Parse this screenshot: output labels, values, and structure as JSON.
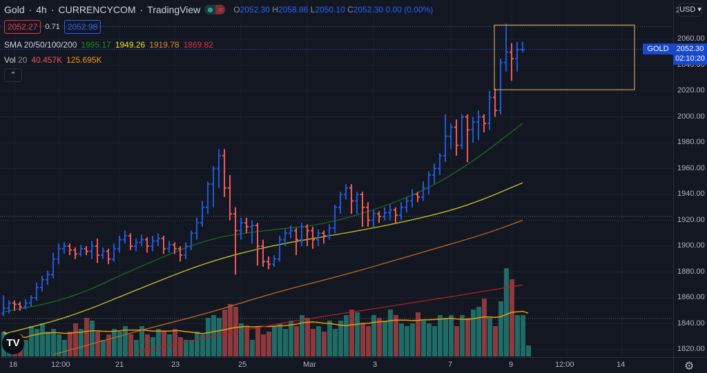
{
  "header": {
    "symbol": "Gold",
    "interval": "4h",
    "source": "CURRENCYCOM",
    "provider": "TradingView",
    "sep": "·",
    "ohlc": {
      "o_label": "O",
      "o": "2052.30",
      "h_label": "H",
      "h": "2058.86",
      "l_label": "L",
      "l": "2050.10",
      "c_label": "C",
      "c": "2052.30",
      "change": "0.00 (0.00%)"
    },
    "bid": "2052.27",
    "spread": "0.71",
    "ask": "2052.98",
    "sma_label": "SMA 20/50/100/200",
    "sma_values": [
      "1995.17",
      "1949.26",
      "1919.78",
      "1869.82"
    ],
    "vol_label": "Vol",
    "vol_period": "20",
    "vol_values": [
      "40.457K",
      "125.695K"
    ],
    "collapse_icon": "chevron-up-icon",
    "collapse_glyph": "⌃"
  },
  "price_axis": {
    "currency": "USD ▾",
    "top_partial": "2",
    "labels": [
      "2060.00",
      "2040.00",
      "2020.00",
      "2000.00",
      "1980.00",
      "1960.00",
      "1940.00",
      "1920.00",
      "1900.00",
      "1880.00",
      "1860.00",
      "1840.00",
      "1820.00"
    ],
    "symbol_tag": "GOLD",
    "last_price": "2052.30",
    "countdown": "02:10:20"
  },
  "time_axis": {
    "ticks": [
      {
        "label": "16",
        "bar": 2
      },
      {
        "label": "12:00",
        "bar": 10
      },
      {
        "label": "21",
        "bar": 21
      },
      {
        "label": "23",
        "bar": 31
      },
      {
        "label": "25",
        "bar": 43
      },
      {
        "label": "Mar",
        "bar": 55
      },
      {
        "label": "3",
        "bar": 67
      },
      {
        "label": "7",
        "bar": 81
      },
      {
        "label": "9",
        "bar": 92
      },
      {
        "label": "12:00",
        "bar": 102
      },
      {
        "label": "14",
        "bar": 112
      }
    ]
  },
  "logo": "TV",
  "settings_icon": "gear-icon",
  "colors": {
    "up": "#2158d6",
    "down": "#f05a5a",
    "vol_up": "#1f6b66",
    "vol_down": "#8c3a3e",
    "sma20": "#1b6b1f",
    "sma50": "#c8c428",
    "sma100": "#c26a1e",
    "sma200": "#b0202a",
    "vol_ma": "#f59b00",
    "rect": "#c9a15a",
    "bg": "#131722"
  },
  "chart_data": {
    "type": "ohlc",
    "ylim": [
      1812,
      2084
    ],
    "ohlc": [
      [
        1848,
        1862,
        1846,
        1852
      ],
      [
        1852,
        1858,
        1848,
        1856
      ],
      [
        1856,
        1858,
        1850,
        1855
      ],
      [
        1855,
        1857,
        1850,
        1853
      ],
      [
        1853,
        1859,
        1851,
        1856
      ],
      [
        1856,
        1862,
        1853,
        1860
      ],
      [
        1860,
        1872,
        1858,
        1868
      ],
      [
        1868,
        1877,
        1865,
        1874
      ],
      [
        1874,
        1881,
        1870,
        1878
      ],
      [
        1878,
        1895,
        1875,
        1890
      ],
      [
        1890,
        1902,
        1886,
        1898
      ],
      [
        1898,
        1903,
        1894,
        1900
      ],
      [
        1900,
        1902,
        1893,
        1897
      ],
      [
        1897,
        1899,
        1890,
        1894
      ],
      [
        1894,
        1901,
        1892,
        1898
      ],
      [
        1898,
        1900,
        1893,
        1896
      ],
      [
        1896,
        1904,
        1890,
        1900
      ],
      [
        1900,
        1906,
        1887,
        1893
      ],
      [
        1893,
        1899,
        1890,
        1896
      ],
      [
        1896,
        1898,
        1886,
        1890
      ],
      [
        1890,
        1902,
        1888,
        1898
      ],
      [
        1898,
        1908,
        1895,
        1905
      ],
      [
        1905,
        1912,
        1902,
        1908
      ],
      [
        1908,
        1910,
        1897,
        1900
      ],
      [
        1900,
        1906,
        1896,
        1903
      ],
      [
        1903,
        1909,
        1900,
        1905
      ],
      [
        1905,
        1907,
        1895,
        1900
      ],
      [
        1900,
        1908,
        1896,
        1904
      ],
      [
        1904,
        1910,
        1900,
        1906
      ],
      [
        1906,
        1908,
        1894,
        1898
      ],
      [
        1898,
        1904,
        1895,
        1901
      ],
      [
        1901,
        1903,
        1894,
        1898
      ],
      [
        1898,
        1900,
        1888,
        1893
      ],
      [
        1893,
        1903,
        1890,
        1900
      ],
      [
        1900,
        1912,
        1897,
        1910
      ],
      [
        1910,
        1922,
        1905,
        1918
      ],
      [
        1918,
        1935,
        1915,
        1930
      ],
      [
        1930,
        1950,
        1925,
        1948
      ],
      [
        1948,
        1962,
        1930,
        1960
      ],
      [
        1960,
        1975,
        1945,
        1970
      ],
      [
        1970,
        1975,
        1938,
        1945
      ],
      [
        1945,
        1955,
        1920,
        1925
      ],
      [
        1925,
        1930,
        1878,
        1912
      ],
      [
        1912,
        1922,
        1905,
        1918
      ],
      [
        1918,
        1922,
        1910,
        1915
      ],
      [
        1915,
        1920,
        1902,
        1916
      ],
      [
        1916,
        1918,
        1885,
        1900
      ],
      [
        1900,
        1905,
        1884,
        1888
      ],
      [
        1888,
        1892,
        1882,
        1886
      ],
      [
        1886,
        1893,
        1884,
        1890
      ],
      [
        1890,
        1908,
        1888,
        1905
      ],
      [
        1905,
        1913,
        1900,
        1910
      ],
      [
        1910,
        1916,
        1906,
        1912
      ],
      [
        1912,
        1914,
        1893,
        1905
      ],
      [
        1905,
        1918,
        1900,
        1915
      ],
      [
        1915,
        1917,
        1900,
        1912
      ],
      [
        1912,
        1915,
        1898,
        1905
      ],
      [
        1905,
        1913,
        1900,
        1910
      ],
      [
        1910,
        1912,
        1902,
        1908
      ],
      [
        1908,
        1917,
        1905,
        1914
      ],
      [
        1914,
        1932,
        1910,
        1930
      ],
      [
        1930,
        1942,
        1925,
        1940
      ],
      [
        1940,
        1948,
        1936,
        1945
      ],
      [
        1945,
        1948,
        1925,
        1935
      ],
      [
        1935,
        1942,
        1925,
        1940
      ],
      [
        1940,
        1942,
        1915,
        1930
      ],
      [
        1930,
        1934,
        1915,
        1920
      ],
      [
        1920,
        1928,
        1915,
        1925
      ],
      [
        1925,
        1927,
        1918,
        1923
      ],
      [
        1923,
        1930,
        1920,
        1926
      ],
      [
        1926,
        1932,
        1920,
        1928
      ],
      [
        1928,
        1930,
        1918,
        1924
      ],
      [
        1924,
        1934,
        1920,
        1930
      ],
      [
        1930,
        1938,
        1926,
        1935
      ],
      [
        1935,
        1944,
        1930,
        1940
      ],
      [
        1940,
        1942,
        1934,
        1938
      ],
      [
        1938,
        1950,
        1935,
        1945
      ],
      [
        1945,
        1958,
        1940,
        1955
      ],
      [
        1955,
        1964,
        1948,
        1960
      ],
      [
        1960,
        1972,
        1955,
        1970
      ],
      [
        1970,
        2002,
        1965,
        1985
      ],
      [
        1985,
        1995,
        1975,
        1992
      ],
      [
        1992,
        1998,
        1970,
        1978
      ],
      [
        1978,
        2002,
        1975,
        2000
      ],
      [
        2000,
        2002,
        1965,
        1990
      ],
      [
        1990,
        2000,
        1980,
        1996
      ],
      [
        1996,
        2005,
        1982,
        2000
      ],
      [
        2000,
        2002,
        1988,
        1995
      ],
      [
        1995,
        2020,
        1990,
        2015
      ],
      [
        2015,
        2022,
        2000,
        2005
      ],
      [
        2005,
        2045,
        2002,
        2042
      ],
      [
        2042,
        2072,
        2035,
        2050
      ],
      [
        2050,
        2057,
        2028,
        2045
      ],
      [
        2045,
        2058,
        2035,
        2052
      ],
      [
        2052,
        2058,
        2050,
        2052
      ]
    ],
    "volume_k": [
      90,
      60,
      55,
      80,
      60,
      110,
      100,
      120,
      90,
      100,
      80,
      60,
      90,
      120,
      100,
      140,
      130,
      90,
      60,
      80,
      100,
      90,
      110,
      80,
      60,
      110,
      80,
      70,
      100,
      90,
      80,
      100,
      70,
      60,
      60,
      90,
      80,
      140,
      150,
      140,
      170,
      190,
      180,
      120,
      110,
      60,
      110,
      80,
      90,
      110,
      120,
      100,
      130,
      110,
      150,
      140,
      100,
      110,
      90,
      130,
      100,
      130,
      150,
      170,
      160,
      120,
      110,
      150,
      140,
      130,
      170,
      150,
      120,
      110,
      120,
      160,
      130,
      120,
      110,
      150,
      140,
      150,
      110,
      150,
      140,
      170,
      180,
      210,
      140,
      110,
      200,
      320,
      280,
      150,
      150,
      40
    ],
    "sma20": [
      [
        0,
        1849
      ],
      [
        12,
        1859
      ],
      [
        24,
        1883
      ],
      [
        37,
        1906
      ],
      [
        47,
        1912
      ],
      [
        59,
        1917
      ],
      [
        74,
        1938
      ],
      [
        84,
        1962
      ],
      [
        94,
        1995
      ]
    ],
    "sma50": [
      [
        0,
        1832
      ],
      [
        12,
        1845
      ],
      [
        24,
        1866
      ],
      [
        37,
        1888
      ],
      [
        49,
        1901
      ],
      [
        62,
        1910
      ],
      [
        74,
        1920
      ],
      [
        84,
        1931
      ],
      [
        94,
        1949
      ]
    ],
    "sma100": [
      [
        9,
        1816
      ],
      [
        24,
        1834
      ],
      [
        37,
        1848
      ],
      [
        49,
        1864
      ],
      [
        62,
        1878
      ],
      [
        74,
        1893
      ],
      [
        87,
        1909
      ],
      [
        94,
        1920
      ]
    ],
    "sma200": [
      [
        24,
        1818
      ],
      [
        49,
        1840
      ],
      [
        74,
        1856
      ],
      [
        94,
        1870
      ]
    ],
    "rectangle": {
      "from_bar": 88,
      "to_bar": 114,
      "top": 2071,
      "bottom": 2021
    },
    "horizontal_lines": [
      2070,
      1923,
      1844
    ],
    "last_price": 2052.3
  }
}
